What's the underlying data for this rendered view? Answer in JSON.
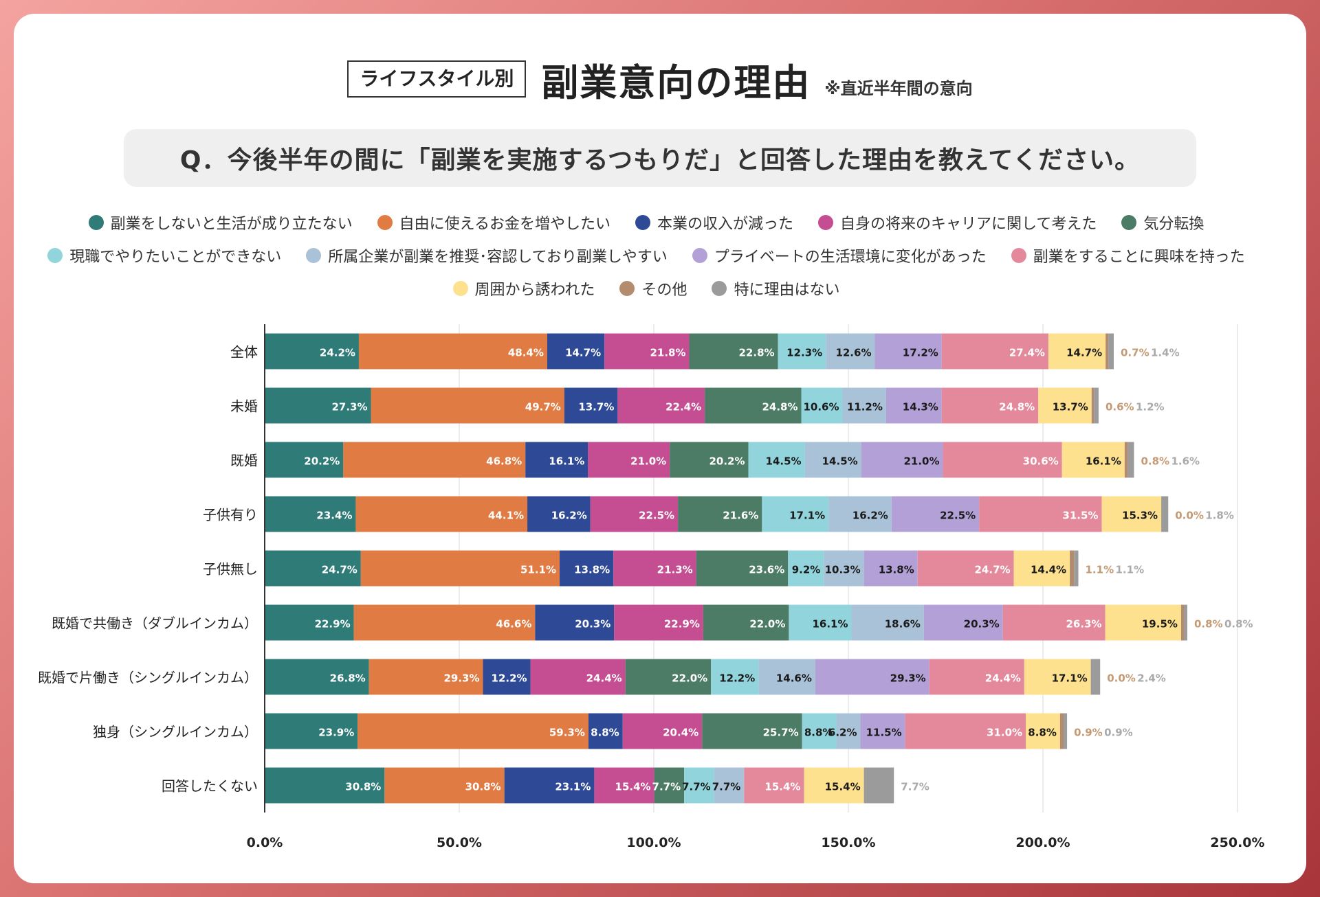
{
  "header": {
    "tag": "ライフスタイル別",
    "title": "副業意向の理由",
    "note": "※直近半年間の意向"
  },
  "question": "Q．今後半年の間に「副業を実施するつもりだ」と回答した理由を教えてください。",
  "colors": {
    "series": [
      "#2e7b78",
      "#e07b43",
      "#2e4a96",
      "#c54e93",
      "#4d7c66",
      "#92d4dc",
      "#a9c2d7",
      "#b3a0d7",
      "#e4889c",
      "#fde18e",
      "#b38b6d",
      "#9b9b9b"
    ]
  },
  "chart_data": {
    "type": "bar",
    "orientation": "horizontal",
    "stacked": true,
    "title": "副業意向の理由",
    "categories": [
      "全体",
      "未婚",
      "既婚",
      "子供有り",
      "子供無し",
      "既婚で共働き（ダブルインカム）",
      "既婚で片働き（シングルインカム）",
      "独身（シングルインカム）",
      "回答したくない"
    ],
    "xlim": [
      0,
      250
    ],
    "xticks": [
      "0.0%",
      "50.0%",
      "100.0%",
      "150.0%",
      "200.0%",
      "250.0%"
    ],
    "grid": true,
    "legend_placement": "top",
    "series": [
      {
        "name": "副業をしないと生活が成り立たない",
        "values": [
          24.2,
          27.3,
          20.2,
          23.4,
          24.7,
          22.9,
          26.8,
          23.9,
          30.8
        ]
      },
      {
        "name": "自由に使えるお金を増やしたい",
        "values": [
          48.4,
          49.7,
          46.8,
          44.1,
          51.1,
          46.6,
          29.3,
          59.3,
          30.8
        ]
      },
      {
        "name": "本業の収入が減った",
        "values": [
          14.7,
          13.7,
          16.1,
          16.2,
          13.8,
          20.3,
          12.2,
          8.8,
          23.1
        ]
      },
      {
        "name": "自身の将来のキャリアに関して考えた",
        "values": [
          21.8,
          22.4,
          21.0,
          22.5,
          21.3,
          22.9,
          24.4,
          20.4,
          15.4
        ]
      },
      {
        "name": "気分転換",
        "values": [
          22.8,
          24.8,
          20.2,
          21.6,
          23.6,
          22.0,
          22.0,
          25.7,
          7.7
        ]
      },
      {
        "name": "現職でやりたいことができない",
        "values": [
          12.3,
          10.6,
          14.5,
          17.1,
          9.2,
          16.1,
          12.2,
          8.8,
          7.7
        ]
      },
      {
        "name": "所属企業が副業を推奨･容認しており副業しやすい",
        "values": [
          12.6,
          11.2,
          14.5,
          16.2,
          10.3,
          18.6,
          14.6,
          6.2,
          7.7
        ]
      },
      {
        "name": "プライベートの生活環境に変化があった",
        "values": [
          17.2,
          14.3,
          21.0,
          22.5,
          13.8,
          20.3,
          29.3,
          11.5,
          0.0
        ]
      },
      {
        "name": "副業をすることに興味を持った",
        "values": [
          27.4,
          24.8,
          30.6,
          31.5,
          24.7,
          26.3,
          24.4,
          31.0,
          15.4
        ]
      },
      {
        "name": "周囲から誘われた",
        "values": [
          14.7,
          13.7,
          16.1,
          15.3,
          14.4,
          19.5,
          17.1,
          8.8,
          15.4
        ]
      },
      {
        "name": "その他",
        "values": [
          0.7,
          0.6,
          0.8,
          0.0,
          1.1,
          0.8,
          0.0,
          0.9,
          0.0
        ]
      },
      {
        "name": "特に理由はない",
        "values": [
          1.4,
          1.2,
          1.6,
          1.8,
          1.1,
          0.8,
          2.4,
          0.9,
          7.7
        ]
      }
    ]
  }
}
